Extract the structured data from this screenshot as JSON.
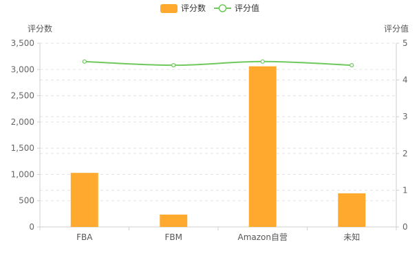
{
  "chart_data": {
    "type": "bar",
    "categories": [
      "FBA",
      "FBM",
      "Amazon自营",
      "未知"
    ],
    "series": [
      {
        "name": "评分数",
        "type": "bar",
        "axis": "left",
        "color": "#ffaa2e",
        "values": [
          1030,
          235,
          3060,
          640
        ]
      },
      {
        "name": "评分值",
        "type": "line",
        "axis": "right",
        "color": "#6dc95b",
        "values": [
          4.5,
          4.4,
          4.5,
          4.4
        ]
      }
    ],
    "y_left": {
      "label": "评分数",
      "ylim": [
        0,
        3500
      ],
      "ticks": [
        "0",
        "500",
        "1,000",
        "1,500",
        "2,000",
        "2,500",
        "3,000",
        "3,500"
      ]
    },
    "y_right": {
      "label": "评分值",
      "ylim": [
        0,
        5
      ],
      "ticks": [
        "0",
        "1",
        "2",
        "3",
        "4",
        "5"
      ]
    },
    "grid": true,
    "legend": "top-center"
  }
}
